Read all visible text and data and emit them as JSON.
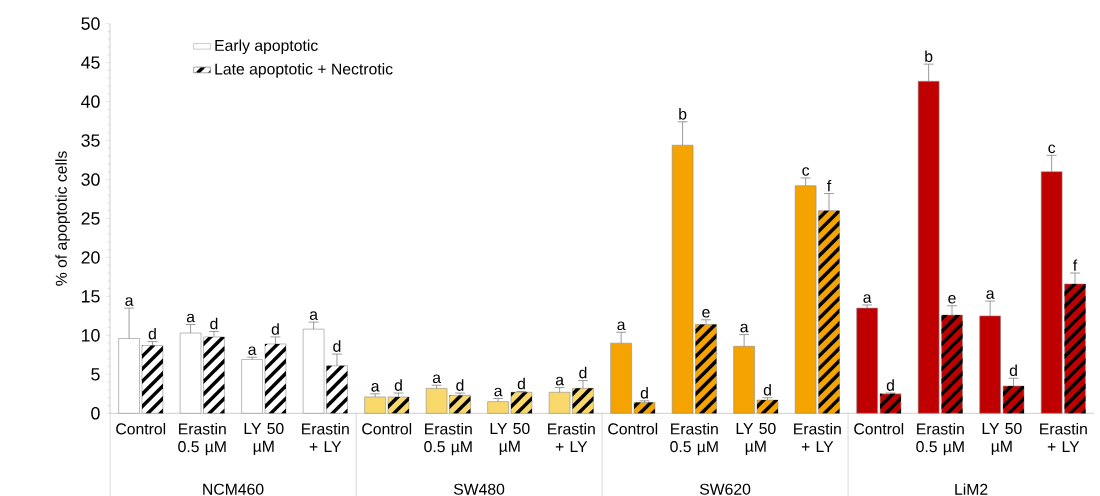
{
  "chart_data": {
    "type": "bar",
    "ylabel": "% of apoptotic cells",
    "categories": [
      "Control",
      "Erastin 0.5 µM",
      "LY 50 µM",
      "Erastin + LY",
      "Control",
      "Erastin 0.5 µM",
      "LY 50 µM",
      "Erastin + LY",
      "Control",
      "Erastin 0.5 µM",
      "LY 50 µM",
      "Erastin + LY",
      "Control",
      "Erastin 0.5 µM",
      "LY 50 µM",
      "Erastin + LY"
    ],
    "annotations": [
      "NCM460",
      "SW480",
      "SW620",
      "LiM2"
    ],
    "series": [
      {
        "name": "Early apoptotic",
        "color": "#ffffff",
        "colors": [
          "#ffffff",
          "#ffffff",
          "#ffffff",
          "#ffffff",
          "#f9d86b",
          "#f9d86b",
          "#f9d86b",
          "#f9d86b",
          "#f5a300",
          "#f5a300",
          "#f5a300",
          "#f5a300",
          "#c00000",
          "#c00000",
          "#c00000",
          "#c00000"
        ],
        "values": [
          9.6,
          10.3,
          6.9,
          10.8,
          2.1,
          3.2,
          1.5,
          2.7,
          9.0,
          34.4,
          8.6,
          29.2,
          13.5,
          42.6,
          12.5,
          31.0
        ],
        "errors": [
          3.9,
          1.1,
          0.3,
          0.9,
          0.4,
          0.4,
          0.4,
          0.6,
          1.4,
          3.0,
          1.5,
          1.0,
          0.4,
          2.2,
          1.9,
          2.1
        ],
        "value_labels": [
          "a",
          "a",
          "a",
          "a",
          "a",
          "a",
          "a",
          "a",
          "a",
          "b",
          "a",
          "c",
          "a",
          "b",
          "a",
          "c"
        ]
      },
      {
        "name": "Late apoptotic + Nectrotic",
        "color": "#ffffff",
        "colors": [
          "#ffffff",
          "#ffffff",
          "#ffffff",
          "#ffffff",
          "#f9d86b",
          "#f9d86b",
          "#f9d86b",
          "#f9d86b",
          "#f5a300",
          "#f5a300",
          "#f5a300",
          "#f5a300",
          "#c00000",
          "#c00000",
          "#c00000",
          "#c00000"
        ],
        "values": [
          8.7,
          9.8,
          8.9,
          6.1,
          2.1,
          2.3,
          2.7,
          3.2,
          1.4,
          11.4,
          1.7,
          26.0,
          2.5,
          12.6,
          3.5,
          16.6
        ],
        "errors": [
          0.5,
          0.7,
          0.9,
          1.5,
          0.5,
          0.3,
          0.1,
          1.0,
          0.2,
          0.6,
          0.3,
          2.2,
          0.1,
          1.2,
          1.0,
          1.4
        ],
        "value_labels": [
          "d",
          "d",
          "d",
          "d",
          "d",
          "d",
          "d",
          "d",
          "d",
          "e",
          "d",
          "f",
          "d",
          "e",
          "d",
          "f"
        ]
      }
    ],
    "ylim": [
      0,
      50
    ],
    "yticks": [
      0,
      5,
      10,
      15,
      20,
      25,
      30,
      35,
      40,
      45,
      50
    ],
    "legend": "top left"
  }
}
